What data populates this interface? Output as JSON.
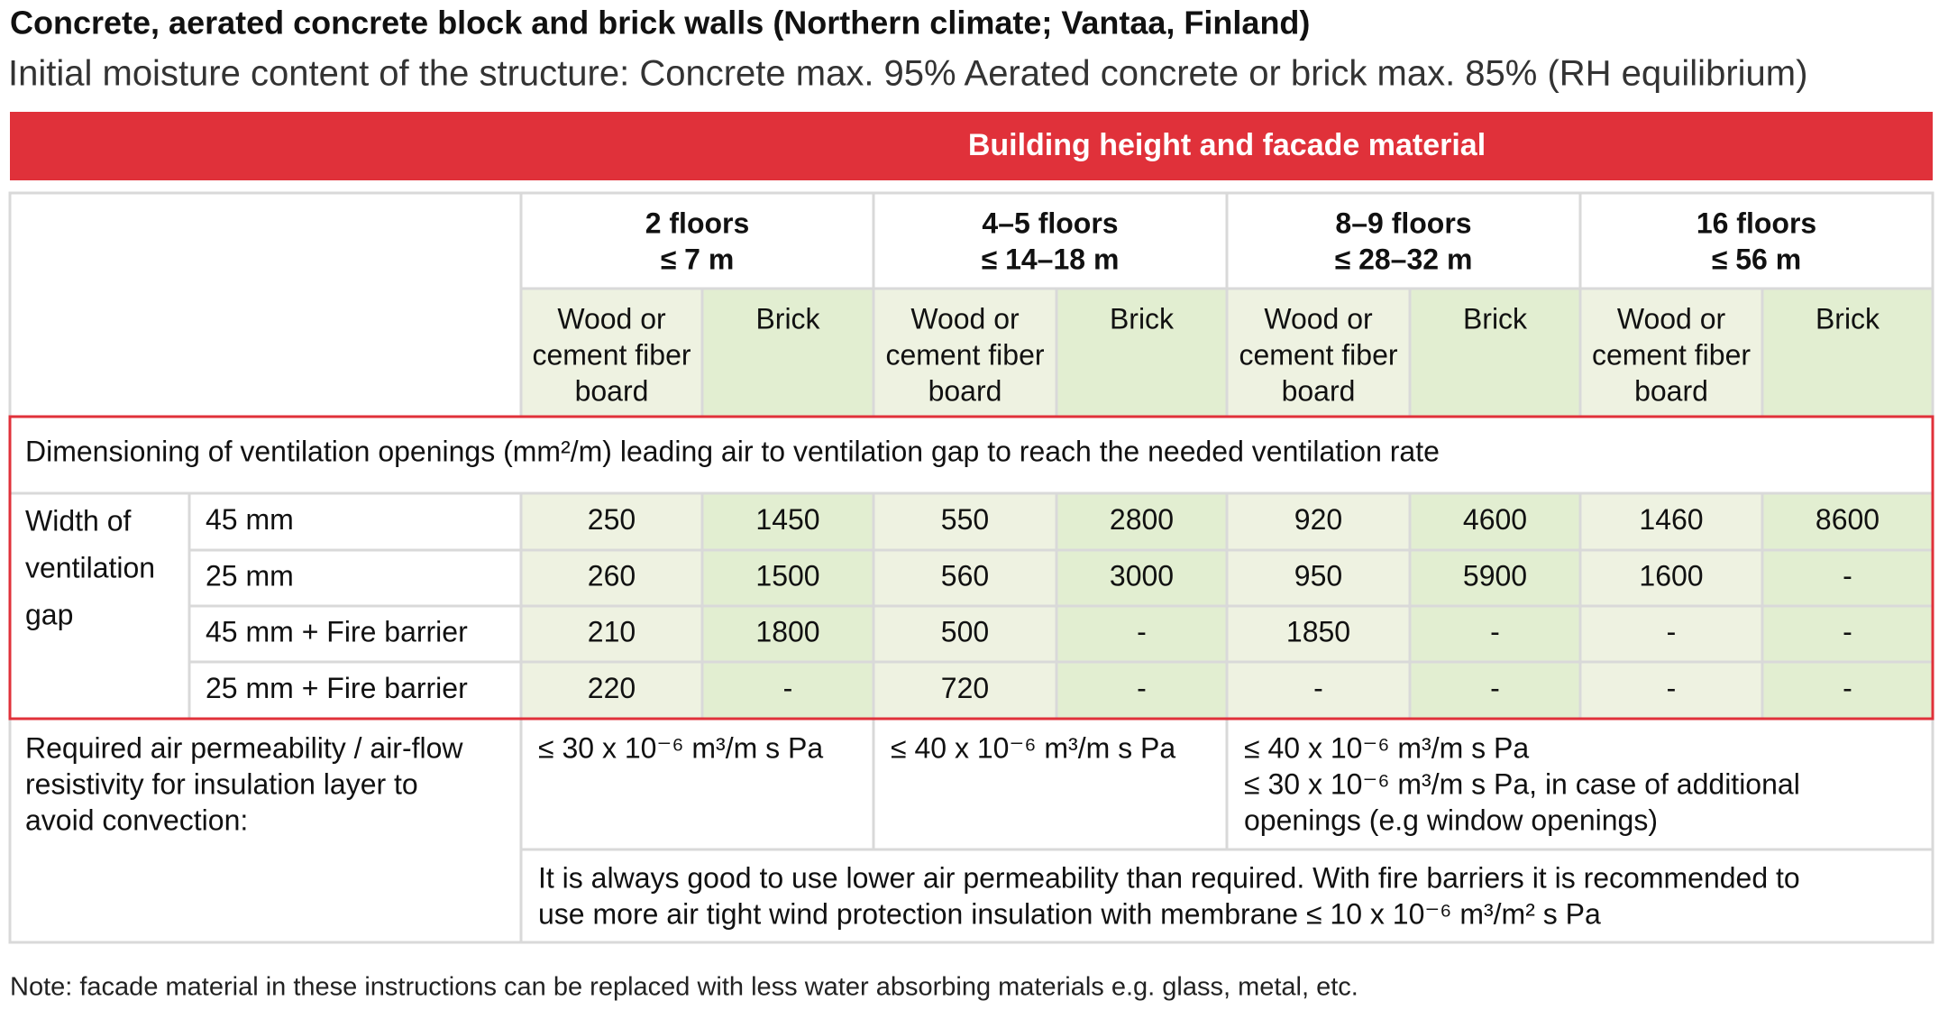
{
  "header": {
    "title": "Concrete, aerated concrete block and brick walls (Northern climate; Vantaa, Finland)",
    "subtitle": "Initial moisture content of the structure: Concrete max. 95%  Aerated concrete or brick max. 85% (RH equilibrium)"
  },
  "banner": "Building height and facade material",
  "table": {
    "floors": [
      [
        "2 floors",
        "≤ 7 m"
      ],
      [
        "4–5 floors",
        "≤ 14–18 m"
      ],
      [
        "8–9 floors",
        "≤ 28–32 m"
      ],
      [
        "16 floors",
        "≤ 56 m"
      ]
    ],
    "facades": [
      [
        "Wood or",
        "cement fiber",
        "board"
      ],
      [
        "Brick"
      ],
      [
        "Wood or",
        "cement fiber",
        "board"
      ],
      [
        "Brick"
      ],
      [
        "Wood or",
        "cement fiber",
        "board"
      ],
      [
        "Brick"
      ],
      [
        "Wood or",
        "cement fiber",
        "board"
      ],
      [
        "Brick"
      ]
    ],
    "section_title": "Dimensioning of ventilation openings (mm²/m) leading air to ventilation gap to reach the needed ventilation rate",
    "row_group_label": [
      "Width of",
      "ventilation",
      "gap"
    ],
    "rows": [
      {
        "label": "45 mm",
        "values": [
          250,
          1450,
          550,
          2800,
          920,
          4600,
          1460,
          8600
        ]
      },
      {
        "label": "25 mm",
        "values": [
          260,
          1500,
          560,
          3000,
          950,
          5900,
          1600,
          "-"
        ]
      },
      {
        "label": "45 mm + Fire barrier",
        "values": [
          210,
          1800,
          500,
          "-",
          1850,
          "-",
          "-",
          "-"
        ]
      },
      {
        "label": "25 mm + Fire barrier",
        "values": [
          220,
          "-",
          720,
          "-",
          "-",
          "-",
          "-",
          "-"
        ]
      }
    ],
    "permeability": {
      "label": [
        "Required air permeability / air-flow",
        "resistivity for insulation layer to",
        "avoid convection:"
      ],
      "values": [
        [
          "≤ 30 x 10⁻⁶ m³/m s Pa"
        ],
        [
          "≤ 40 x 10⁻⁶ m³/m s Pa"
        ],
        [
          "≤ 40 x 10⁻⁶ m³/m s Pa",
          "≤ 30 x 10⁻⁶ m³/m s Pa, in case of additional",
          "openings (e.g window openings)"
        ]
      ],
      "note": [
        "It is always good to use lower air permeability than required. With fire barriers it is recommended to",
        "use more air tight wind protection insulation with membrane ≤ 10 x 10⁻⁶ m³/m² s Pa"
      ]
    }
  },
  "note": "Note: facade material in these instructions can be replaced with less water absorbing materials e.g. glass, metal, etc."
}
